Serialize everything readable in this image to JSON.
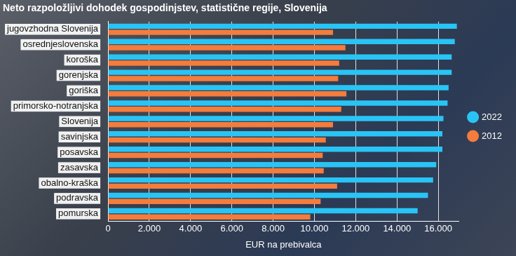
{
  "chart_data": {
    "type": "bar",
    "orientation": "horizontal",
    "title": "Neto razpoložljivi dohodek gospodinjstev, statistične regije, Slovenija",
    "x_label": "EUR na prebivalca",
    "categories": [
      "jugovzhodna Slovenija",
      "osrednjeslovenska",
      "koroška",
      "gorenjska",
      "goriška",
      "primorsko-notranjska",
      "Slovenija",
      "savinjska",
      "posavska",
      "zasavska",
      "obalno-kraška",
      "podravska",
      "pomurska"
    ],
    "series": [
      {
        "name": "2022",
        "color": "#29c4f6",
        "values": [
          16900,
          16800,
          16650,
          16650,
          16500,
          16450,
          16250,
          16200,
          16200,
          15900,
          15750,
          15500,
          15000
        ]
      },
      {
        "name": "2012",
        "color": "#f47c3c",
        "values": [
          10900,
          11500,
          11200,
          11150,
          11550,
          11300,
          10900,
          10550,
          10400,
          10450,
          11100,
          10300,
          9800
        ]
      }
    ],
    "xlim": [
      0,
      17000
    ],
    "xticks": [
      0,
      {
        "value": 2000,
        "label": "2.000"
      },
      {
        "value": 4000,
        "label": "4.000"
      },
      {
        "value": 6000,
        "label": "6.000"
      },
      {
        "value": 8000,
        "label": "8.000"
      },
      {
        "value": 10000,
        "label": "10.000"
      },
      {
        "value": 12000,
        "label": "12.000"
      },
      {
        "value": 14000,
        "label": "14.000"
      },
      {
        "value": 16000,
        "label": "16.000"
      }
    ],
    "grid": true,
    "legend": "right"
  }
}
